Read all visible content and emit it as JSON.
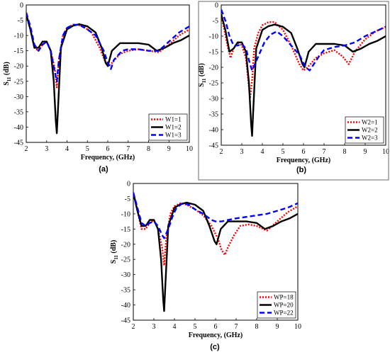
{
  "chart_data": [
    {
      "type": "line",
      "caption": "(a)",
      "xlabel": "Frequency, (GHz)",
      "ylabel": "S11 (dB)",
      "ylabel_main": "S",
      "ylabel_sub": "11",
      "ylabel_unit": "(dB)",
      "xlim": [
        2,
        10
      ],
      "ylim": [
        -45,
        0
      ],
      "xticks": [
        2,
        3,
        4,
        5,
        6,
        7,
        8,
        9,
        10
      ],
      "yticks": [
        0,
        -5,
        -10,
        -15,
        -20,
        -25,
        -30,
        -35,
        -40,
        -45
      ],
      "legend_position": "bottom-right",
      "series": [
        {
          "name": "W1=1",
          "color": "#ff0000",
          "style": "dotted",
          "x": [
            2,
            2.2,
            2.4,
            2.6,
            2.8,
            3.0,
            3.2,
            3.4,
            3.5,
            3.6,
            3.8,
            4.0,
            4.3,
            4.5,
            4.8,
            5.2,
            5.6,
            5.9,
            6.05,
            6.2,
            6.6,
            7.0,
            7.5,
            8.0,
            8.5,
            9.0,
            9.5,
            10.0
          ],
          "y": [
            -3,
            -8,
            -14,
            -15,
            -13,
            -12,
            -15,
            -21,
            -27,
            -18,
            -10,
            -7.5,
            -6.5,
            -6.5,
            -7,
            -9,
            -14,
            -19,
            -20,
            -19,
            -16,
            -15,
            -14.5,
            -15,
            -15.5,
            -13,
            -10,
            -8
          ]
        },
        {
          "name": "W1=2",
          "color": "#000000",
          "style": "solid",
          "x": [
            2,
            2.2,
            2.4,
            2.6,
            2.8,
            3.0,
            3.2,
            3.35,
            3.45,
            3.5,
            3.55,
            3.7,
            4.0,
            4.3,
            4.6,
            5.0,
            5.4,
            5.7,
            5.9,
            6.0,
            6.2,
            6.6,
            7.0,
            7.5,
            8.0,
            8.4,
            8.8,
            9.2,
            9.6,
            10.0
          ],
          "y": [
            -3,
            -8,
            -14,
            -14,
            -12,
            -12,
            -15,
            -25,
            -38,
            -42,
            -35,
            -14,
            -8,
            -6.8,
            -6.3,
            -7,
            -9,
            -14,
            -19,
            -20,
            -15,
            -12.5,
            -12.5,
            -12.5,
            -13,
            -15,
            -14,
            -12.5,
            -11.5,
            -10
          ]
        },
        {
          "name": "W1=3",
          "color": "#0000ff",
          "style": "dashed",
          "x": [
            2,
            2.2,
            2.4,
            2.6,
            2.8,
            3.0,
            3.2,
            3.4,
            3.5,
            3.6,
            3.8,
            4.0,
            4.3,
            4.6,
            5.0,
            5.4,
            5.8,
            6.0,
            6.15,
            6.3,
            6.7,
            7.0,
            7.5,
            8.0,
            8.5,
            9.0,
            9.5,
            10.0
          ],
          "y": [
            -2.5,
            -7,
            -13,
            -15,
            -13,
            -12,
            -15,
            -22,
            -25,
            -18,
            -10,
            -7.5,
            -6.5,
            -6.5,
            -8,
            -10,
            -15,
            -19,
            -21,
            -18,
            -15,
            -14.5,
            -14.5,
            -15,
            -15,
            -12,
            -9,
            -7
          ]
        }
      ]
    },
    {
      "type": "line",
      "caption": "(b)",
      "xlabel": "Frequency, (GHz)",
      "ylabel": "S11 (dB)",
      "ylabel_main": "S",
      "ylabel_sub": "11",
      "ylabel_unit": "(dB)",
      "xlim": [
        2,
        10
      ],
      "ylim": [
        -45,
        0
      ],
      "xticks": [
        2,
        3,
        4,
        5,
        6,
        7,
        8,
        9,
        10
      ],
      "yticks": [
        0,
        -5,
        -10,
        -15,
        -20,
        -25,
        -30,
        -35,
        -40,
        -45
      ],
      "legend_position": "bottom-right",
      "series": [
        {
          "name": "W2=1",
          "color": "#ff0000",
          "style": "dotted",
          "x": [
            2,
            2.15,
            2.3,
            2.45,
            2.6,
            2.8,
            3.0,
            3.2,
            3.4,
            3.5,
            3.6,
            3.8,
            4.0,
            4.3,
            4.6,
            5.0,
            5.4,
            5.8,
            6.0,
            6.2,
            6.6,
            7.0,
            7.5,
            7.9,
            8.2,
            8.5,
            9.0,
            9.5,
            10.0
          ],
          "y": [
            -3,
            -8,
            -13,
            -17,
            -14,
            -12,
            -13,
            -17,
            -30,
            -24,
            -14,
            -9,
            -6.5,
            -5.5,
            -5.5,
            -8,
            -13,
            -19,
            -21,
            -20,
            -17,
            -15.5,
            -14.5,
            -16.5,
            -19,
            -15,
            -11,
            -8.5,
            -7
          ]
        },
        {
          "name": "W2=2",
          "color": "#000000",
          "style": "solid",
          "x": [
            2,
            2.2,
            2.4,
            2.6,
            2.8,
            3.0,
            3.2,
            3.35,
            3.45,
            3.5,
            3.55,
            3.7,
            4.0,
            4.3,
            4.6,
            5.0,
            5.4,
            5.7,
            5.95,
            6.05,
            6.25,
            6.6,
            7.0,
            7.5,
            8.0,
            8.4,
            8.8,
            9.2,
            9.6,
            10.0
          ],
          "y": [
            -3,
            -8,
            -15,
            -14,
            -12,
            -12,
            -15,
            -25,
            -38,
            -42,
            -35,
            -14,
            -8,
            -6.8,
            -6.3,
            -7,
            -9,
            -14,
            -19,
            -20,
            -15,
            -12.5,
            -12.5,
            -12.5,
            -13,
            -15,
            -14,
            -12.5,
            -11.5,
            -10
          ]
        },
        {
          "name": "W2=3",
          "color": "#0000ff",
          "style": "dashed",
          "x": [
            2,
            2.2,
            2.4,
            2.6,
            2.8,
            3.0,
            3.2,
            3.4,
            3.5,
            3.7,
            3.9,
            4.1,
            4.4,
            4.7,
            5.0,
            5.4,
            5.8,
            6.1,
            6.3,
            6.5,
            6.8,
            7.0,
            7.5,
            8.0,
            8.5,
            9.0,
            9.5,
            10.0
          ],
          "y": [
            -1.5,
            -5,
            -10,
            -13,
            -13,
            -12.5,
            -14,
            -19,
            -21,
            -18,
            -15,
            -12,
            -9.5,
            -8.5,
            -10,
            -13,
            -16,
            -20,
            -21,
            -19,
            -16,
            -14.5,
            -13.5,
            -13,
            -12,
            -10,
            -8.5,
            -7
          ]
        }
      ]
    },
    {
      "type": "line",
      "caption": "(c)",
      "xlabel": "Frequency, (GHz)",
      "ylabel": "S11 (dB)",
      "ylabel_main": "S",
      "ylabel_sub": "11",
      "ylabel_unit": "(dB)",
      "xlim": [
        2,
        10
      ],
      "ylim": [
        -45,
        0
      ],
      "xticks": [
        2,
        3,
        4,
        5,
        6,
        7,
        8,
        9,
        10
      ],
      "yticks": [
        0,
        -5,
        -10,
        -15,
        -20,
        -25,
        -30,
        -35,
        -40,
        -45
      ],
      "legend_position": "bottom-right",
      "series": [
        {
          "name": "WP=18",
          "color": "#ff0000",
          "style": "dotted",
          "x": [
            2,
            2.2,
            2.4,
            2.6,
            2.8,
            3.0,
            3.2,
            3.4,
            3.5,
            3.6,
            3.8,
            4.0,
            4.3,
            4.6,
            5.0,
            5.4,
            5.8,
            6.1,
            6.3,
            6.45,
            6.6,
            6.9,
            7.2,
            7.6,
            8.0,
            8.5,
            9.0,
            9.5,
            10.0
          ],
          "y": [
            -3,
            -9,
            -15,
            -15,
            -13,
            -12,
            -15,
            -21,
            -27,
            -18,
            -10,
            -7.5,
            -6.5,
            -7,
            -8.5,
            -10.5,
            -14,
            -18,
            -22,
            -23.5,
            -21,
            -17,
            -14,
            -13.5,
            -14,
            -15.5,
            -12.5,
            -9.5,
            -7.5
          ]
        },
        {
          "name": "WP=20",
          "color": "#000000",
          "style": "solid",
          "x": [
            2,
            2.2,
            2.4,
            2.6,
            2.8,
            3.0,
            3.2,
            3.35,
            3.45,
            3.5,
            3.55,
            3.7,
            4.0,
            4.3,
            4.6,
            5.0,
            5.4,
            5.7,
            5.95,
            6.05,
            6.25,
            6.6,
            7.0,
            7.5,
            8.0,
            8.4,
            8.8,
            9.2,
            9.6,
            10.0
          ],
          "y": [
            -3,
            -9,
            -14,
            -14,
            -12,
            -12,
            -15,
            -25,
            -38,
            -42,
            -35,
            -14,
            -8,
            -6.8,
            -6.3,
            -7,
            -9,
            -14,
            -19,
            -20,
            -15,
            -12.5,
            -12.5,
            -12.5,
            -13,
            -15,
            -14,
            -12.5,
            -11.5,
            -10
          ]
        },
        {
          "name": "WP=22",
          "color": "#0000ff",
          "style": "dashed",
          "x": [
            2,
            2.2,
            2.4,
            2.6,
            2.8,
            3.0,
            3.2,
            3.4,
            3.5,
            3.7,
            3.9,
            4.1,
            4.4,
            4.7,
            5.0,
            5.4,
            5.8,
            6.0,
            6.3,
            6.6,
            7.0,
            7.5,
            8.0,
            8.5,
            9.0,
            9.5,
            10.0
          ],
          "y": [
            -3,
            -8,
            -13,
            -14,
            -13,
            -12.5,
            -14,
            -17,
            -18,
            -15,
            -11,
            -8,
            -6.5,
            -7,
            -8.5,
            -10,
            -12,
            -12.5,
            -12.5,
            -12,
            -11.5,
            -11,
            -10.5,
            -10,
            -9,
            -8,
            -6.5
          ]
        }
      ]
    }
  ]
}
